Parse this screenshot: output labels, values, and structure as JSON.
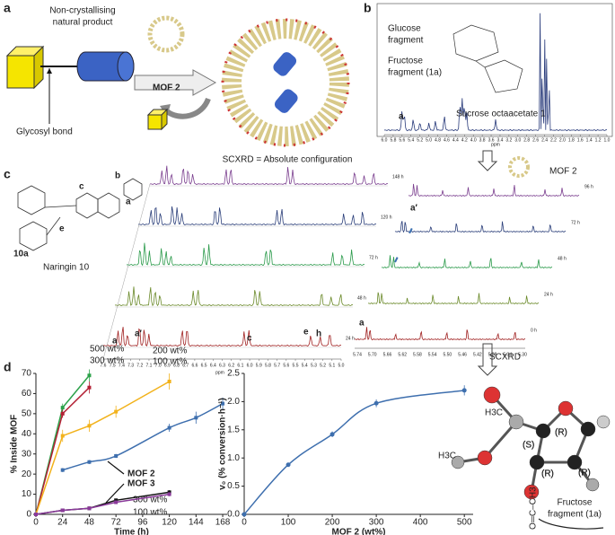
{
  "figure": {
    "a": {
      "label": "a",
      "product": [
        "Non-crystallising",
        "natural product"
      ],
      "bond": "Glycosyl bond",
      "mof": "MOF 2",
      "result": "SCXRD = Absolute configuration"
    },
    "b": {
      "label": "b",
      "glucose": [
        "Glucose",
        "fragment"
      ],
      "fructose": [
        "Fructose",
        "fragment (1a)"
      ],
      "compound": "Sucrose octaacetate 1",
      "peak": "a",
      "axis": "ppm",
      "ticks": [
        "6.0",
        "5.8",
        "5.6",
        "5.4",
        "5.2",
        "5.0",
        "4.8",
        "4.6",
        "4.4",
        "4.2",
        "4.0",
        "3.8",
        "3.6",
        "3.4",
        "3.2",
        "3.0",
        "2.8",
        "2.6",
        "2.4",
        "2.2",
        "2.0",
        "1.8",
        "1.6",
        "1.4",
        "1.2",
        "1.0"
      ],
      "mof": "MOF 2"
    },
    "c": {
      "label": "c",
      "compound": "Naringin 10",
      "fragment": "10a",
      "structure_peaks": [
        "c",
        "b",
        "a",
        "e"
      ],
      "times": [
        "148 h",
        "120 h",
        "72 h",
        "48 h",
        "24 h"
      ],
      "ticks": [
        "7.6",
        "7.5",
        "7.4",
        "7.3",
        "7.2",
        "7.1",
        "7.0",
        "6.9",
        "6.8",
        "6.7",
        "6.6",
        "6.5",
        "6.4",
        "6.3",
        "6.2",
        "6.1",
        "6.0",
        "5.9",
        "5.8",
        "5.7",
        "5.6",
        "5.5",
        "5.4",
        "5.3",
        "5.2",
        "5.1",
        "5.0"
      ],
      "axis": "ppm",
      "trace_peaks": [
        "a",
        "a′",
        "c",
        "e",
        "h"
      ],
      "inset_times": [
        "96 h",
        "72 h",
        "48 h",
        "24 h",
        "0 h"
      ],
      "inset_ticks": [
        "5.74",
        "5.70",
        "5.66",
        "5.62",
        "5.58",
        "5.54",
        "5.50",
        "5.46",
        "5.42",
        "5.38",
        "5.34",
        "5.30"
      ],
      "inset_peaks": [
        "a",
        "a′"
      ]
    },
    "d": {
      "label": "d"
    },
    "e": {
      "method": "SCXRD",
      "methyl": [
        "H3C",
        "H3C"
      ],
      "centers": [
        "(S)",
        "(R)",
        "(R)",
        "(R)"
      ],
      "acetyl": "O═C–CH3",
      "fragment": [
        "Fructose",
        "fragment (1a)"
      ]
    }
  },
  "chart_data": [
    {
      "type": "line",
      "ylabel": "% Inside MOF",
      "xlabel": "Time (h)",
      "xlim": [
        0,
        172
      ],
      "ylim": [
        0,
        70
      ],
      "xticks": [
        0,
        24,
        48,
        72,
        96,
        120,
        144,
        168
      ],
      "yticks": [
        0,
        10,
        20,
        30,
        40,
        50,
        60,
        70
      ],
      "annotations": [
        "MOF 2",
        "MOF 3"
      ],
      "series": [
        {
          "name": "500 wt%",
          "color": "#2ca24a",
          "x": [
            0,
            24,
            48
          ],
          "values": [
            0,
            53,
            69
          ],
          "errors": [
            0,
            2,
            3
          ]
        },
        {
          "name": "300 wt%",
          "color": "#b32034",
          "x": [
            0,
            24,
            48
          ],
          "values": [
            0,
            50,
            63
          ],
          "errors": [
            0,
            2,
            3
          ]
        },
        {
          "name": "200 wt%",
          "color": "#f2b21b",
          "x": [
            0,
            24,
            48,
            72,
            120
          ],
          "values": [
            0,
            39,
            44,
            51,
            66
          ],
          "errors": [
            0,
            3,
            3,
            3,
            4
          ]
        },
        {
          "name": "100 wt%",
          "color": "#3e6fae",
          "x": [
            24,
            48,
            72,
            120,
            144,
            168
          ],
          "values": [
            22,
            26,
            29,
            43,
            48,
            55
          ],
          "errors": [
            1,
            1,
            1,
            2,
            3,
            3
          ],
          "smooth": true
        },
        {
          "name": "300 wt%",
          "color": "#111111",
          "x": [
            0,
            24,
            48,
            72,
            120
          ],
          "values": [
            0,
            2,
            3,
            7,
            11
          ],
          "errors": [
            0,
            0.5,
            0.5,
            0.5,
            1
          ]
        },
        {
          "name": "100 wt%",
          "color": "#8a3a9a",
          "x": [
            0,
            24,
            48,
            72,
            120
          ],
          "values": [
            0,
            2,
            3,
            6,
            10
          ],
          "errors": [
            0,
            0.5,
            0.5,
            0.5,
            1
          ]
        }
      ]
    },
    {
      "type": "scatter",
      "ylabel": "v₀ (% conversion·h⁻¹)",
      "xlabel": "MOF 2 (wt%)",
      "xlim": [
        0,
        520
      ],
      "ylim": [
        0,
        2.5
      ],
      "xticks": [
        0,
        100,
        200,
        300,
        400,
        500
      ],
      "yticks": [
        {
          "value": 0,
          "label": "0.0"
        },
        {
          "value": 0.5,
          "label": "0.5"
        },
        {
          "value": 1,
          "label": "1.0"
        },
        {
          "value": 1.5,
          "label": "1.5"
        },
        {
          "value": 2,
          "label": "2.0"
        },
        {
          "value": 2.5,
          "label": "2.5"
        }
      ],
      "color": "#3e6fae",
      "x": [
        0,
        100,
        200,
        300,
        500
      ],
      "values": [
        0,
        0.88,
        1.42,
        1.97,
        2.2
      ],
      "errors": [
        0,
        0.03,
        0.05,
        0.07,
        0.09
      ]
    }
  ]
}
